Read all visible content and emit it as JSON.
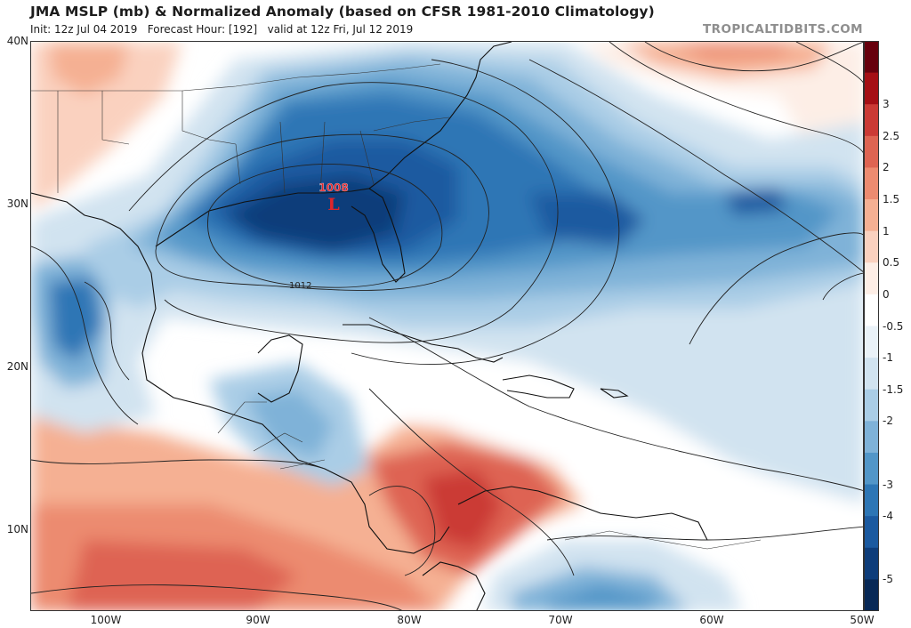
{
  "header": {
    "title": "JMA MSLP (mb) & Normalized Anomaly (based on CFSR 1981-2010 Climatology)",
    "subtitle": "Init: 12z Jul 04 2019   Forecast Hour: [192]   valid at 12z Fri, Jul 12 2019",
    "brand": "TROPICALTIDBITS.COM"
  },
  "map": {
    "lat_labels": [
      "40N",
      "30N",
      "20N",
      "10N"
    ],
    "lon_labels": [
      "100W",
      "90W",
      "80W",
      "70W",
      "60W",
      "50W"
    ],
    "low_center": {
      "symbol": "L",
      "pressure": "1008",
      "color": "#e0252b"
    },
    "isobar_labels": [
      "1012"
    ]
  },
  "colorbar": {
    "labels": [
      "3",
      "2.5",
      "2",
      "1.5",
      "1",
      "0.5",
      "0",
      "-0.5",
      "-1",
      "-1.5",
      "-2",
      "-3",
      "-4",
      "-5"
    ],
    "colors": [
      "#67000d",
      "#a50f15",
      "#cb3a35",
      "#de6452",
      "#ec8b70",
      "#f5b093",
      "#fad1bf",
      "#fdeee6",
      "#ffffff",
      "#eaf2f8",
      "#d1e3f0",
      "#aacde6",
      "#7fb2d8",
      "#5296c8",
      "#2d76b5",
      "#1b5aa0",
      "#0e3d7a",
      "#082956"
    ]
  }
}
